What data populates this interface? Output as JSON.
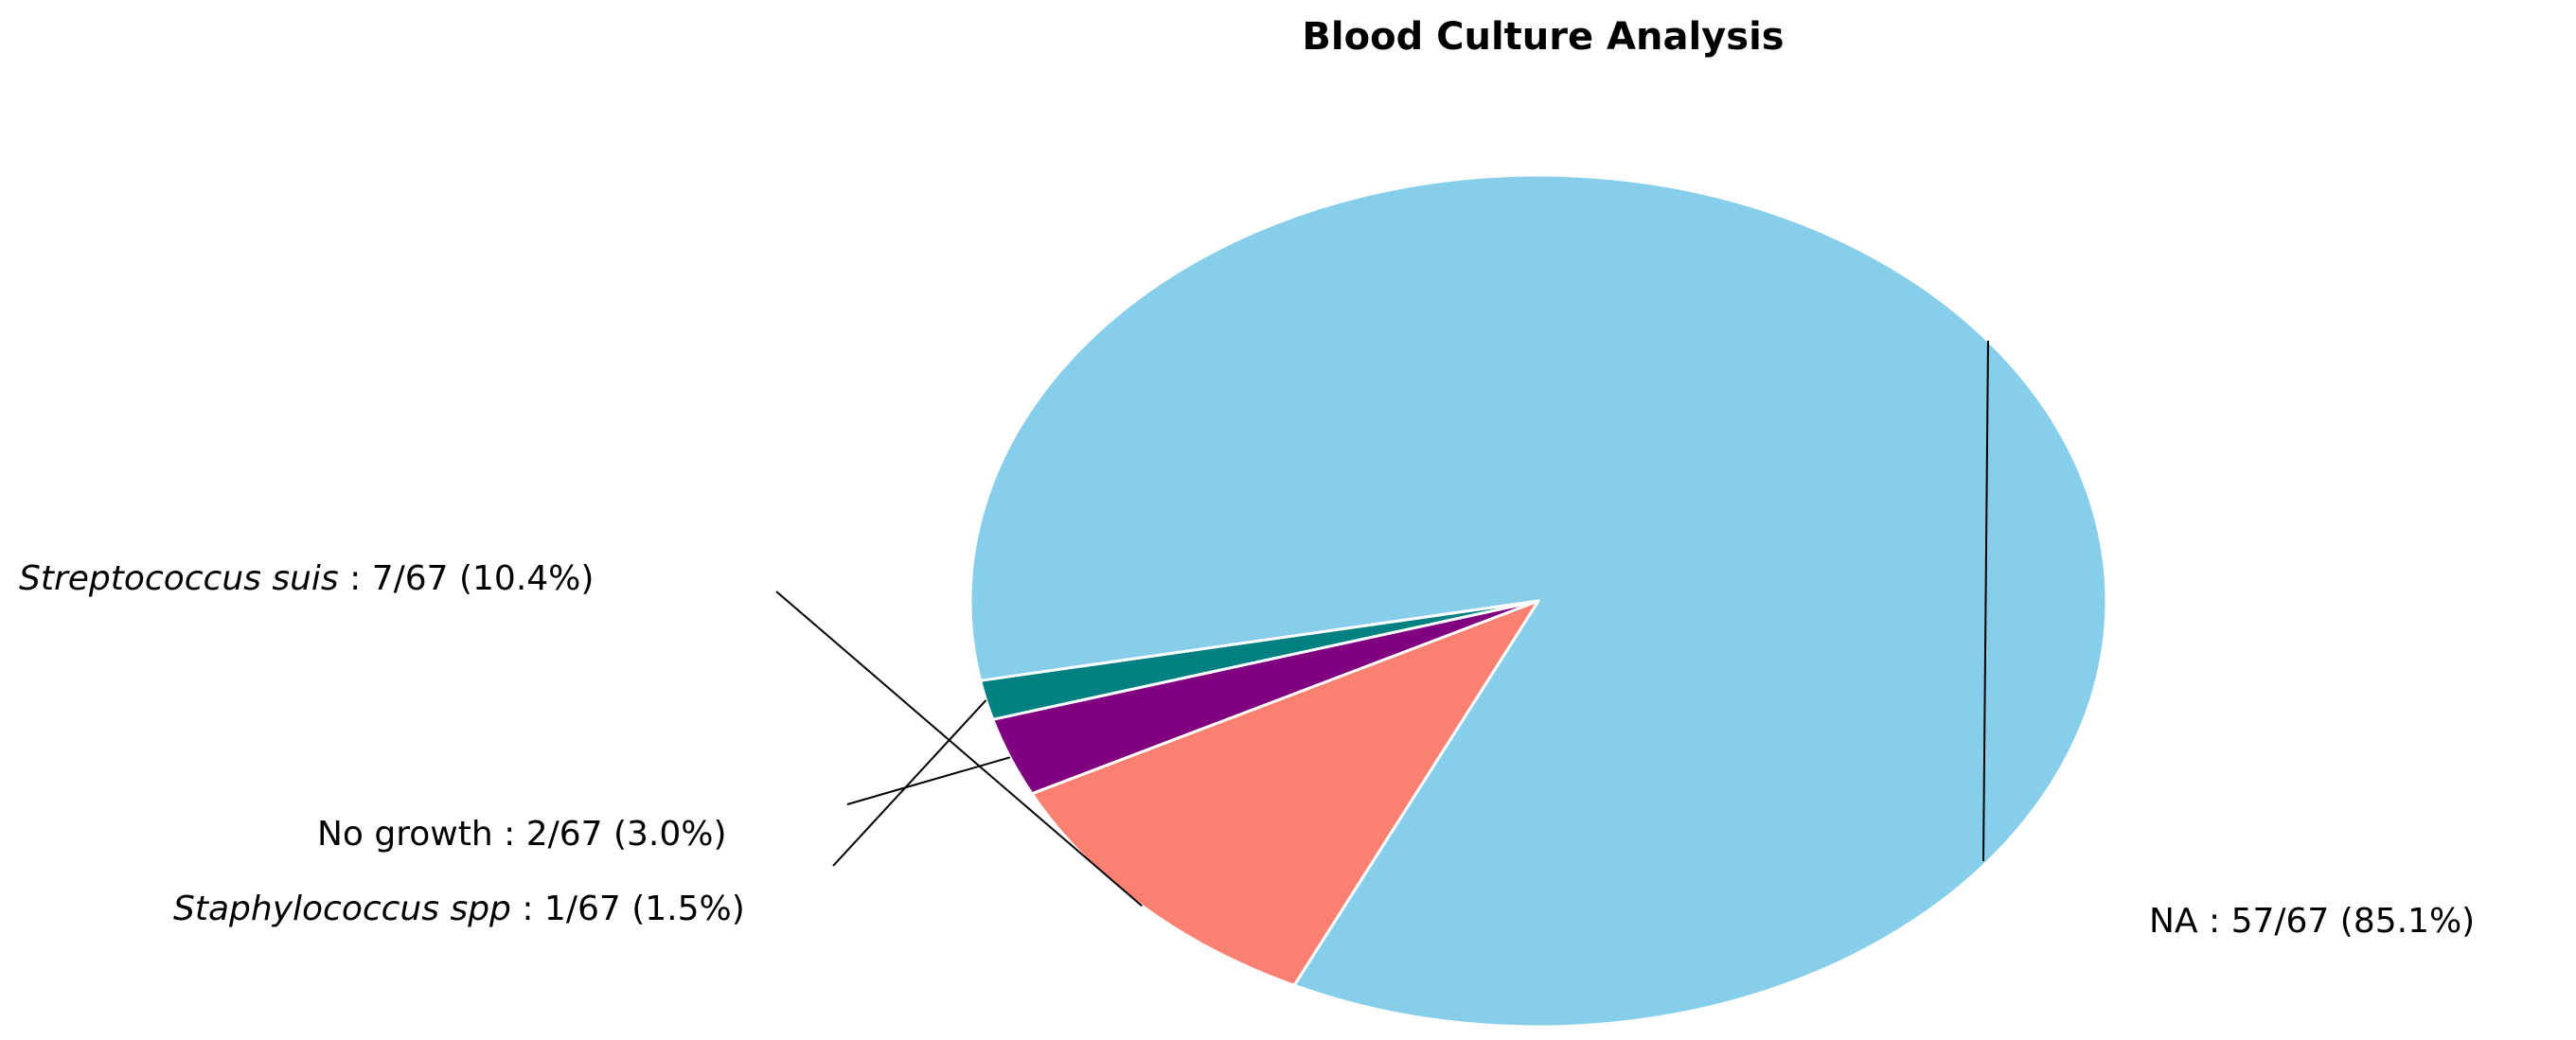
{
  "chart_data": {
    "type": "pie",
    "title": "Blood Culture Analysis",
    "total": 67,
    "slices": [
      {
        "name": "NA",
        "count": 57,
        "percent": "85.1%",
        "color": "#87CEEB",
        "italic": false
      },
      {
        "name": "Streptococcus suis",
        "count": 7,
        "percent": "10.4%",
        "color": "#FA8072",
        "italic": true
      },
      {
        "name": "No growth",
        "count": 2,
        "percent": "3.0%",
        "color": "#800080",
        "italic": false
      },
      {
        "name": "Staphylococcus spp",
        "count": 1,
        "percent": "1.5%",
        "color": "#008080",
        "italic": true
      }
    ],
    "labels": [
      {
        "species": "NA",
        "suffix": " : 57/67 (85.1%)"
      },
      {
        "species": "Streptococcus suis",
        "suffix": " : 7/67 (10.4%)"
      },
      {
        "species": "No growth",
        "suffix": " : 2/67 (3.0%)"
      },
      {
        "species": "Staphylococcus spp",
        "suffix": " : 1/67 (1.5%)"
      }
    ]
  }
}
